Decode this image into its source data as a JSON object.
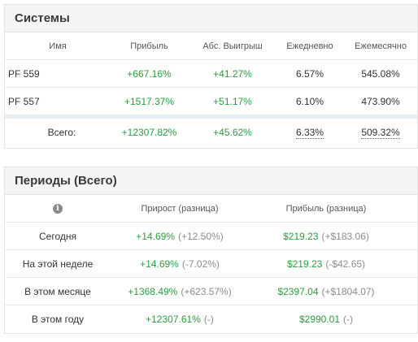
{
  "systems": {
    "title": "Системы",
    "headers": [
      "Имя",
      "Прибыль",
      "Абс. Выигрыш",
      "Ежедневно",
      "Ежемесячно"
    ],
    "rows": [
      {
        "name": "PF 559",
        "profit": "+667.16%",
        "abs": "+41.27%",
        "daily": "6.57%",
        "monthly": "545.08%"
      },
      {
        "name": "PF 557",
        "profit": "+1517.37%",
        "abs": "+51.17%",
        "daily": "6.10%",
        "monthly": "473.90%"
      }
    ],
    "total": {
      "label": "Всего:",
      "profit": "+12307.82%",
      "abs": "+45.62%",
      "daily": "6.33%",
      "monthly": "509.32%"
    }
  },
  "periods": {
    "title": "Периоды (Всего)",
    "info_icon": "info-icon",
    "headers": [
      "Прирост (разница)",
      "Прибыль (разница)"
    ],
    "rows": [
      {
        "label": "Сегодня",
        "growth": "+14.69%",
        "growth_diff": "(+12.50%)",
        "profit": "$219.23",
        "profit_diff": "(+$183.06)"
      },
      {
        "label": "На этой неделе",
        "growth": "+14.69%",
        "growth_diff": "(-7.02%)",
        "profit": "$219.23",
        "profit_diff": "(-$42.65)"
      },
      {
        "label": "В этом месяце",
        "growth": "+1368.49%",
        "growth_diff": "(+623.57%)",
        "profit": "$2397.04",
        "profit_diff": "(+$1804.07)"
      },
      {
        "label": "В этом году",
        "growth": "+12307.61%",
        "growth_diff": "(-)",
        "profit": "$2990.01",
        "profit_diff": "(-)"
      }
    ]
  },
  "colors": {
    "positive": "#2a9d3e",
    "muted": "#8c8c8c",
    "header_bg": "#f5f5f5"
  }
}
